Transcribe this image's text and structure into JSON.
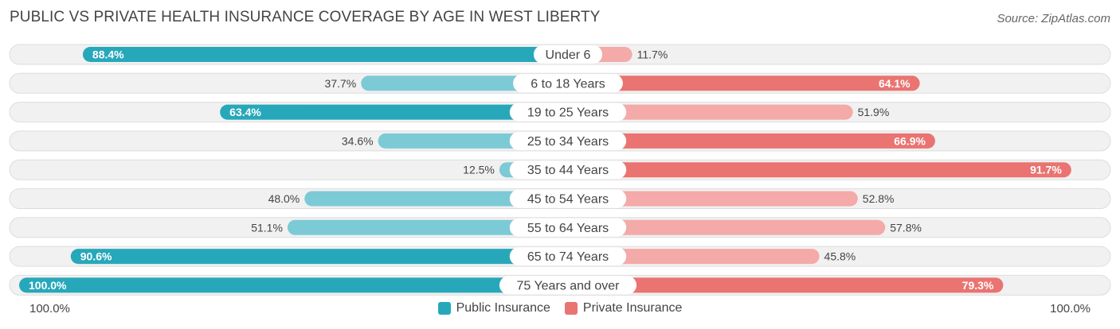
{
  "header": {
    "title": "PUBLIC VS PRIVATE HEALTH INSURANCE COVERAGE BY AGE IN WEST LIBERTY",
    "source": "Source: ZipAtlas.com"
  },
  "axis": {
    "left_label": "100.0%",
    "right_label": "100.0%"
  },
  "legend": {
    "public_label": "Public Insurance",
    "private_label": "Private Insurance"
  },
  "colors": {
    "public_strong": "#27a8ba",
    "public_light": "#7ccad6",
    "private_strong": "#e97471",
    "private_light": "#f3aaa8",
    "row_bg": "#f1f1f1",
    "row_border": "#dddddd"
  },
  "chart_data": {
    "type": "bar",
    "orientation": "horizontal-diverging",
    "categories": [
      "Under 6",
      "6 to 18 Years",
      "19 to 25 Years",
      "25 to 34 Years",
      "35 to 44 Years",
      "45 to 54 Years",
      "55 to 64 Years",
      "65 to 74 Years",
      "75 Years and over"
    ],
    "series": [
      {
        "name": "Public Insurance",
        "values": [
          88.4,
          37.7,
          63.4,
          34.6,
          12.5,
          48.0,
          51.1,
          90.6,
          100.0
        ],
        "labels": [
          "88.4%",
          "37.7%",
          "63.4%",
          "34.6%",
          "12.5%",
          "48.0%",
          "51.1%",
          "90.6%",
          "100.0%"
        ]
      },
      {
        "name": "Private Insurance",
        "values": [
          11.7,
          64.1,
          51.9,
          66.9,
          91.7,
          52.8,
          57.8,
          45.8,
          79.3
        ],
        "labels": [
          "11.7%",
          "64.1%",
          "51.9%",
          "66.9%",
          "91.7%",
          "52.8%",
          "57.8%",
          "45.8%",
          "79.3%"
        ]
      }
    ],
    "xlim": [
      0,
      100
    ],
    "legend_position": "bottom-center"
  }
}
